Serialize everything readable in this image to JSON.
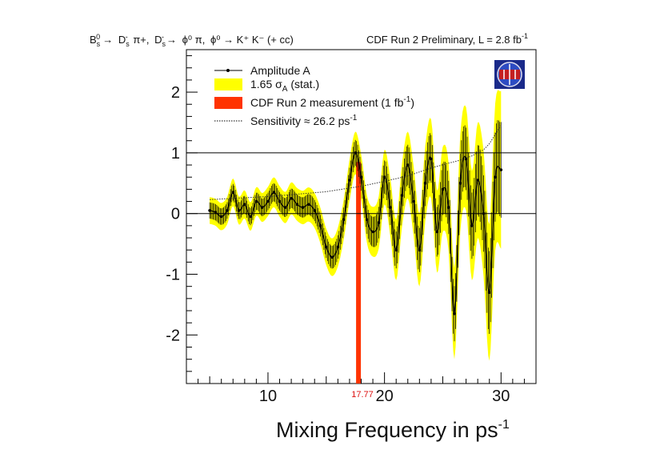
{
  "chart_data": {
    "type": "line",
    "title_left_parts": {
      "bs_base": "B",
      "bs_sub": "s",
      "bs_sup": "0",
      "arrow": "→",
      "ds_base": "D",
      "ds_sub": "s",
      "ds_sup": "-",
      "pi_plus": "π+,",
      "phi_pi": "ϕ⁰ π,",
      "phi_kk": "ϕ⁰ → K⁺ K⁻ (+ cc)"
    },
    "title_right": "CDF Run 2 Preliminary, L = 2.8 fb",
    "title_right_sup": "-1",
    "xlabel": "Mixing Frequency in ps",
    "xlabel_sup": "-1",
    "xlim": [
      3,
      33
    ],
    "ylim": [
      -2.8,
      2.7
    ],
    "x_ticks": [
      10,
      20,
      30
    ],
    "x_tick_labels": [
      "10",
      "20",
      "30"
    ],
    "y_ticks": [
      -2,
      -1,
      0,
      1,
      2
    ],
    "y_tick_labels": [
      "-2",
      "-1",
      "0",
      "1",
      "2"
    ],
    "reference_lines": [
      0,
      1
    ],
    "measurement": {
      "x": 17.77,
      "label": "17.77"
    },
    "legend": {
      "amplitude": "Amplitude A",
      "band_base": "1.65 σ",
      "band_sub": "A",
      "band_suffix": " (stat.)",
      "measurement": "CDF Run 2 measurement (1 fb",
      "measurement_sup": "-1",
      "measurement_close": ")",
      "sensitivity": "Sensitivity ≈ 26.2 ps",
      "sensitivity_sup": "-1"
    },
    "series": [
      {
        "name": "Amplitude A",
        "x": [
          5.0,
          5.5,
          6.0,
          6.5,
          7.0,
          7.5,
          8.0,
          8.5,
          9.0,
          9.5,
          10.0,
          10.5,
          11.0,
          11.5,
          12.0,
          12.5,
          13.0,
          13.5,
          14.0,
          14.5,
          15.0,
          15.5,
          16.0,
          16.5,
          17.0,
          17.5,
          18.0,
          18.5,
          19.0,
          19.5,
          20.0,
          20.5,
          21.0,
          21.5,
          22.0,
          22.5,
          23.0,
          23.5,
          24.0,
          24.5,
          25.0,
          25.5,
          26.0,
          26.5,
          27.0,
          27.5,
          28.0,
          28.5,
          29.0,
          29.5,
          30.0
        ],
        "values": [
          0.05,
          0.02,
          -0.05,
          0.05,
          0.35,
          0.05,
          0.15,
          -0.05,
          0.2,
          0.1,
          0.2,
          0.35,
          0.2,
          0.1,
          0.25,
          0.15,
          0.1,
          0.15,
          0.05,
          -0.2,
          -0.55,
          -0.72,
          -0.55,
          -0.1,
          0.55,
          1.0,
          0.6,
          -0.1,
          -0.3,
          -0.15,
          0.6,
          0.1,
          -0.6,
          0.3,
          0.8,
          0.2,
          -0.6,
          0.5,
          0.9,
          -0.3,
          0.4,
          0.1,
          -1.65,
          0.5,
          0.9,
          -0.2,
          0.55,
          0.0,
          -1.3,
          0.6,
          0.72
        ]
      },
      {
        "name": "1.65 σA band half-width",
        "x": [
          5.0,
          10.0,
          15.0,
          17.5,
          20.0,
          22.0,
          24.0,
          26.0,
          28.0,
          30.0
        ],
        "values": [
          0.22,
          0.24,
          0.3,
          0.35,
          0.45,
          0.55,
          0.65,
          0.75,
          0.95,
          1.3
        ]
      },
      {
        "name": "Sensitivity",
        "x": [
          5.0,
          8.0,
          10.0,
          12.0,
          15.0,
          18.0,
          20.0,
          22.0,
          24.0,
          25.5,
          26.5,
          27.5,
          28.5,
          29.0,
          29.5,
          30.0
        ],
        "values": [
          0.23,
          0.26,
          0.28,
          0.31,
          0.36,
          0.45,
          0.53,
          0.62,
          0.75,
          0.83,
          0.88,
          0.95,
          1.05,
          1.15,
          1.3,
          1.45
        ]
      }
    ]
  }
}
